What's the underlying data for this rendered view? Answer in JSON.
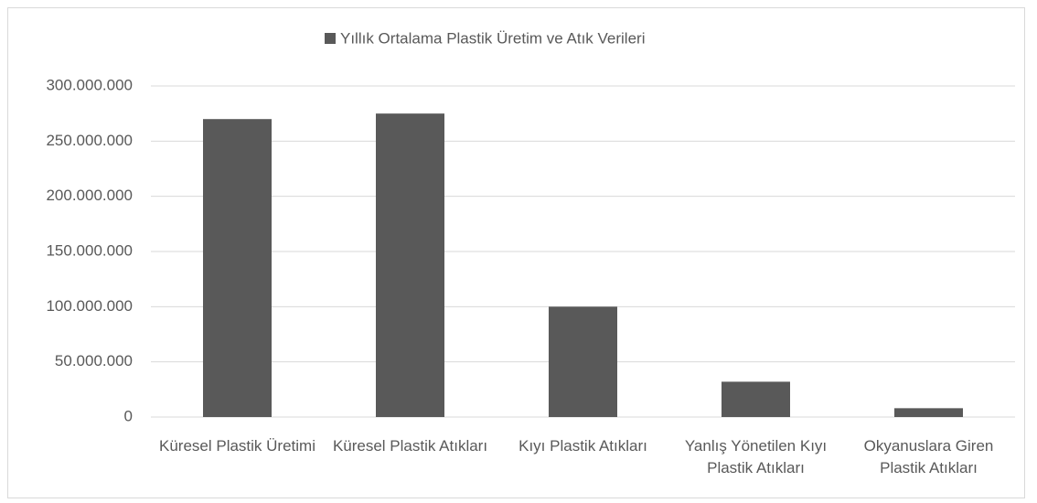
{
  "chart_data": {
    "type": "bar",
    "categories": [
      "Küresel Plastik Üretimi",
      "Küresel Plastik Atıkları",
      "Kıyı Plastik Atıkları",
      "Yanlış Yönetilen Kıyı Plastik Atıkları",
      "Okyanuslara Giren Plastik Atıkları"
    ],
    "series": [
      {
        "name": "Yıllık Ortalama Plastik Üretim ve Atık Verileri",
        "color": "#595959",
        "values": [
          270000000,
          275000000,
          100000000,
          32000000,
          8000000
        ]
      }
    ],
    "ylim": [
      0,
      300000000
    ],
    "yticks": [
      0,
      {
        "value": 50000000,
        "label": "50.000.000"
      },
      {
        "value": 100000000,
        "label": "100.000.000"
      },
      {
        "value": 150000000,
        "label": "150.000.000"
      },
      {
        "value": 200000000,
        "label": "200.000.000"
      },
      {
        "value": 250000000,
        "label": "250.000.000"
      },
      {
        "value": 300000000,
        "label": "300.000.000"
      }
    ],
    "grid": true,
    "legend": "top"
  }
}
